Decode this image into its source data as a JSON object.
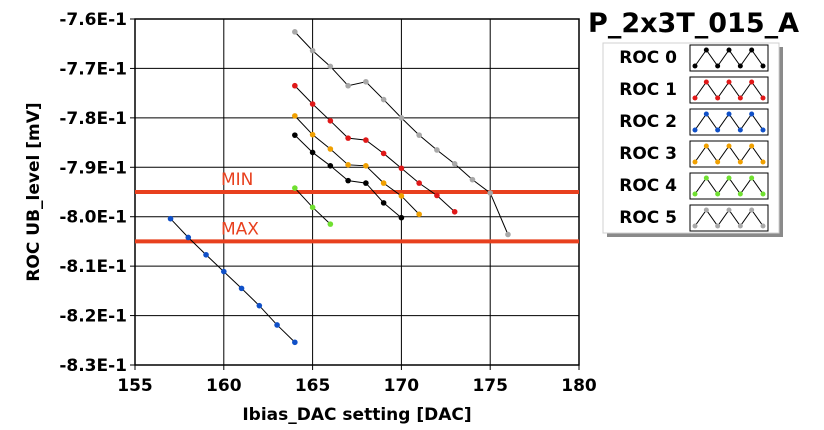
{
  "chart_data": {
    "type": "line",
    "title": "P_2x3T_015_A",
    "xlabel": "Ibias_DAC setting [DAC]",
    "ylabel": "ROC UB_level [mV]",
    "xlim": [
      155,
      180
    ],
    "ylim": [
      -0.83,
      -0.76
    ],
    "x_ticks": [
      155,
      160,
      165,
      170,
      175,
      180
    ],
    "y_ticks": [
      {
        "value": -0.76,
        "label": "-7.6E-1"
      },
      {
        "value": -0.77,
        "label": "-7.7E-1"
      },
      {
        "value": -0.78,
        "label": "-7.8E-1"
      },
      {
        "value": -0.79,
        "label": "-7.9E-1"
      },
      {
        "value": -0.8,
        "label": "-8.0E-1"
      },
      {
        "value": -0.81,
        "label": "-8.1E-1"
      },
      {
        "value": -0.82,
        "label": "-8.2E-1"
      },
      {
        "value": -0.83,
        "label": "-8.3E-1"
      }
    ],
    "grid": true,
    "legend_position": "right",
    "reference_lines": [
      {
        "label": "MIN",
        "y": -0.795,
        "color": "#e8401e"
      },
      {
        "label": "MAX",
        "y": -0.805,
        "color": "#e8401e"
      }
    ],
    "series": [
      {
        "name": "ROC 0",
        "color": "#000000",
        "x": [
          164,
          165,
          166,
          167,
          168,
          169,
          170
        ],
        "y": [
          -0.7835,
          -0.787,
          -0.7897,
          -0.7927,
          -0.7932,
          -0.7972,
          -0.8002
        ]
      },
      {
        "name": "ROC 1",
        "color": "#e01818",
        "x": [
          164,
          165,
          166,
          167,
          168,
          169,
          170,
          171,
          172,
          173
        ],
        "y": [
          -0.7735,
          -0.7772,
          -0.7806,
          -0.7841,
          -0.7845,
          -0.7872,
          -0.7902,
          -0.7932,
          -0.7957,
          -0.799
        ]
      },
      {
        "name": "ROC 2",
        "color": "#1050c8",
        "x": [
          157,
          158,
          159,
          160,
          161,
          162,
          163,
          164
        ],
        "y": [
          -0.8004,
          -0.8042,
          -0.8077,
          -0.8111,
          -0.8145,
          -0.818,
          -0.8219,
          -0.8254
        ]
      },
      {
        "name": "ROC 3",
        "color": "#f0a000",
        "x": [
          164,
          165,
          166,
          167,
          168,
          169,
          170,
          171
        ],
        "y": [
          -0.7796,
          -0.7834,
          -0.7863,
          -0.7895,
          -0.7897,
          -0.7932,
          -0.7958,
          -0.7995
        ]
      },
      {
        "name": "ROC 4",
        "color": "#70e030",
        "x": [
          164,
          165,
          166
        ],
        "y": [
          -0.7942,
          -0.7981,
          -0.8015
        ]
      },
      {
        "name": "ROC 5",
        "color": "#a8a8a8",
        "x": [
          164,
          165,
          166,
          167,
          168,
          169,
          170,
          171,
          172,
          173,
          174,
          175,
          176
        ],
        "y": [
          -0.7626,
          -0.7664,
          -0.7696,
          -0.7735,
          -0.7727,
          -0.7763,
          -0.78,
          -0.7835,
          -0.7865,
          -0.7893,
          -0.7925,
          -0.7952,
          -0.8036
        ]
      }
    ]
  }
}
